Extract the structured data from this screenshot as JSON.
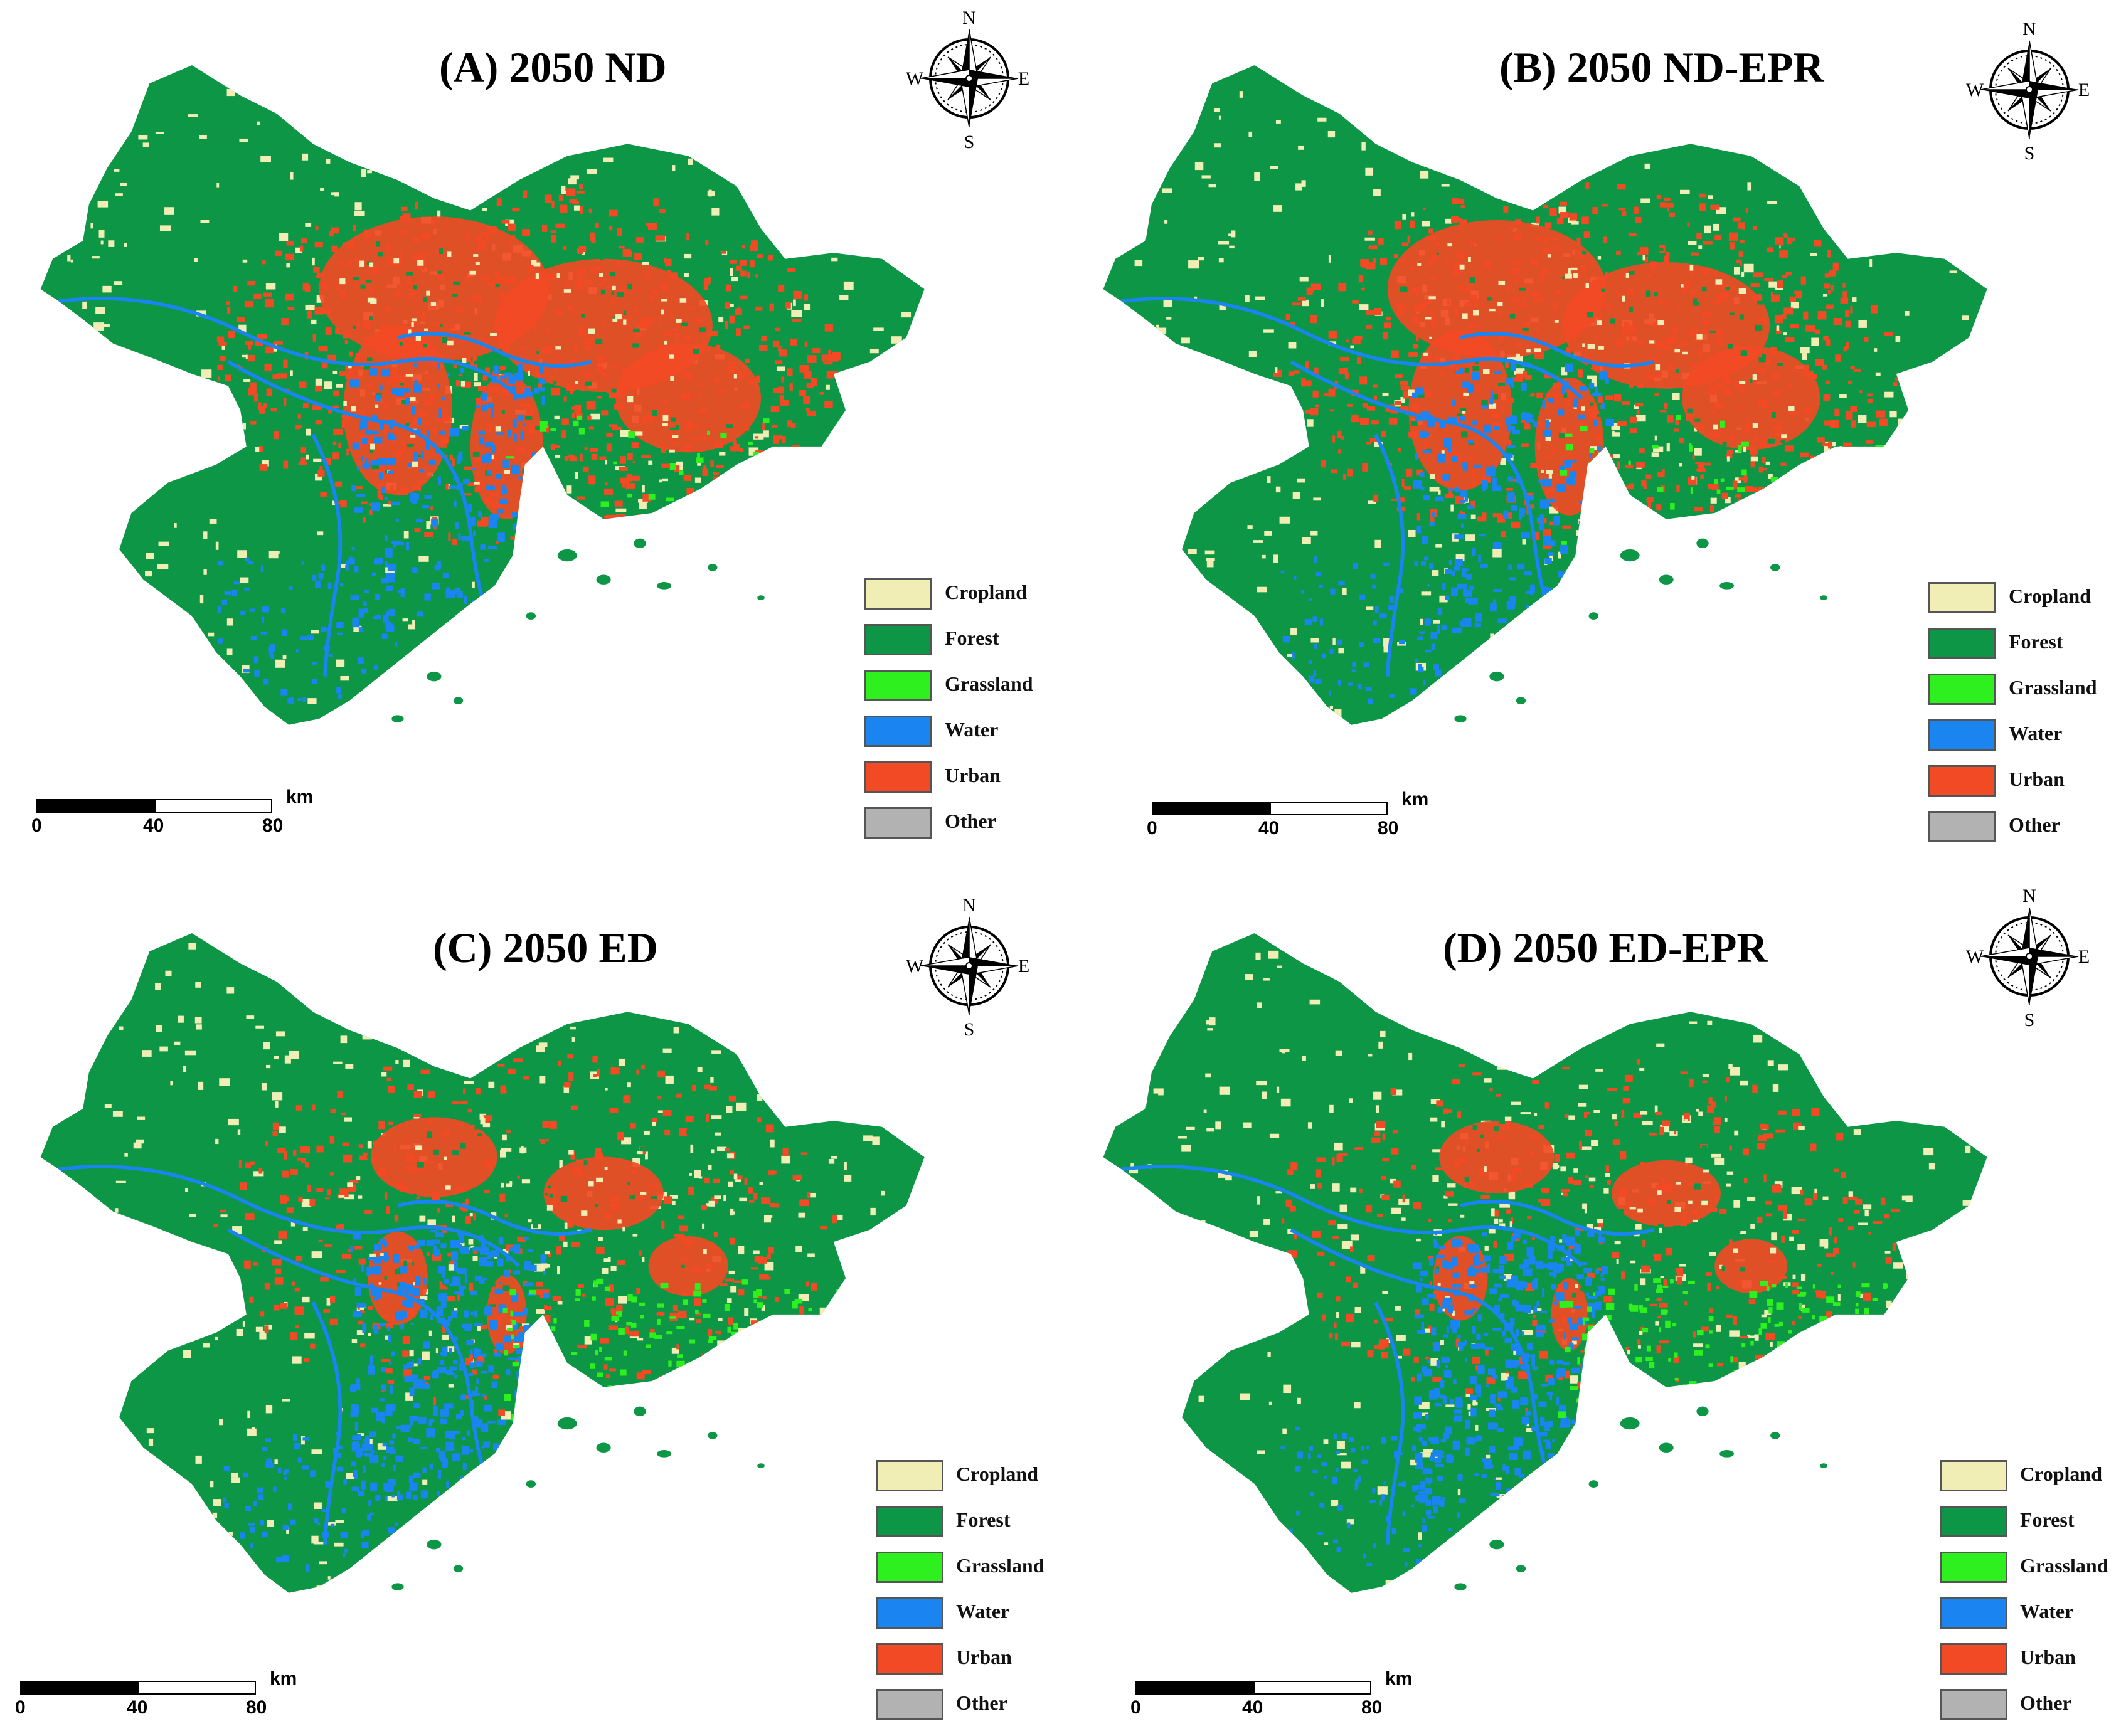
{
  "colors": {
    "cropland": "#F0EDB5",
    "forest": "#0C9646",
    "grassland": "#2EF01E",
    "water": "#1A85F0",
    "urban": "#F24A24",
    "other": "#B2B2B2"
  },
  "legend_items": [
    {
      "key": "cropland",
      "label": "Cropland"
    },
    {
      "key": "forest",
      "label": "Forest"
    },
    {
      "key": "grassland",
      "label": "Grassland"
    },
    {
      "key": "water",
      "label": "Water"
    },
    {
      "key": "urban",
      "label": "Urban"
    },
    {
      "key": "other",
      "label": "Other"
    }
  ],
  "compass": {
    "n": "N",
    "s": "S",
    "e": "E",
    "w": "W",
    "icon": "compass-rose-icon"
  },
  "scalebar": {
    "ticks": [
      "0",
      "40",
      "80"
    ],
    "unit": "km"
  },
  "panels": [
    {
      "id": "A",
      "title": "(A) 2050 ND",
      "urban_level": 1.0,
      "water_level": 0.5,
      "grass_level": 0.2
    },
    {
      "id": "B",
      "title": "(B) 2050 ND-EPR",
      "urban_level": 0.95,
      "water_level": 0.5,
      "grass_level": 0.2
    },
    {
      "id": "C",
      "title": "(C) 2050 ED",
      "urban_level": 0.55,
      "water_level": 0.85,
      "grass_level": 0.6
    },
    {
      "id": "D",
      "title": "(D) 2050 ED-EPR",
      "urban_level": 0.5,
      "water_level": 0.85,
      "grass_level": 0.7
    }
  ]
}
